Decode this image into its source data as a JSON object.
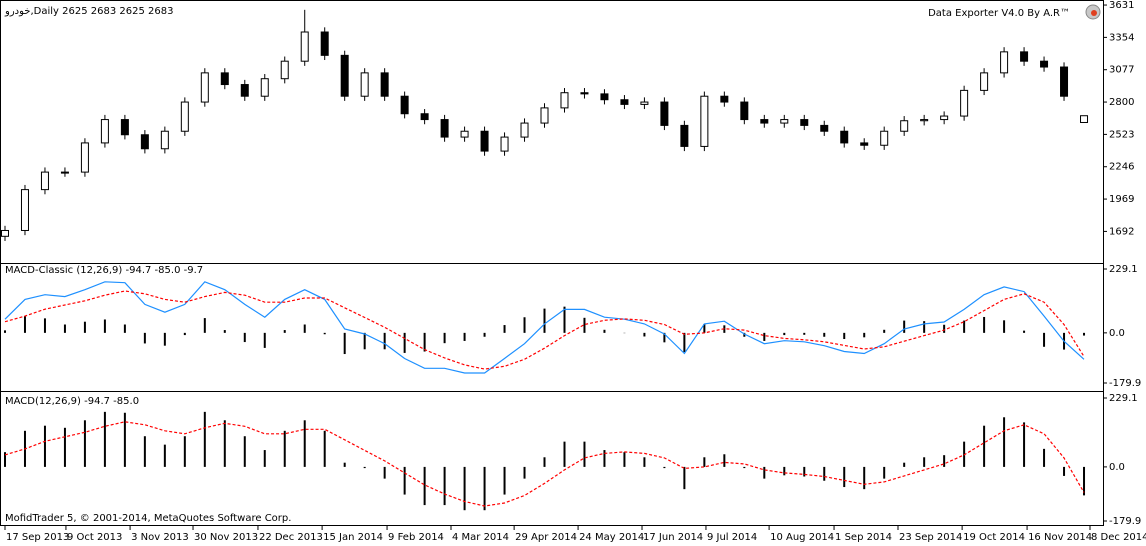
{
  "footer": "MofidTrader 5, © 2001-2014, MetaQuotes Software Corp.",
  "chart_data": [
    {
      "type": "candlestick",
      "title": "خودرو,Daily  2625 2683 2625 2683",
      "annotation": "Data Exporter V4.0 By A.R™",
      "x": [
        0,
        1,
        2,
        3,
        4,
        5,
        6,
        7,
        8,
        9,
        10,
        11,
        12,
        13,
        14,
        15,
        16,
        17,
        18,
        19,
        20,
        21,
        22,
        23,
        24,
        25,
        26,
        27,
        28,
        29,
        30,
        31,
        32,
        33,
        34,
        35,
        36,
        37,
        38,
        39,
        40,
        41,
        42,
        43,
        44,
        45,
        46,
        47,
        48,
        49,
        50,
        51,
        52,
        53,
        54
      ],
      "open": [
        1650,
        1700,
        2050,
        2200,
        2200,
        2450,
        2650,
        2520,
        2400,
        2550,
        2800,
        3050,
        2950,
        2850,
        3000,
        3150,
        3400,
        3200,
        2850,
        3050,
        2850,
        2700,
        2650,
        2500,
        2550,
        2380,
        2500,
        2620,
        2750,
        2880,
        2870,
        2820,
        2780,
        2800,
        2600,
        2420,
        2850,
        2800,
        2650,
        2620,
        2650,
        2600,
        2550,
        2450,
        2430,
        2550,
        2640,
        2650,
        2680,
        2900,
        3050,
        3230,
        3150,
        3100,
        2625
      ],
      "high": [
        1740,
        2090,
        2240,
        2240,
        2490,
        2690,
        2690,
        2560,
        2590,
        2840,
        3090,
        3090,
        2990,
        3040,
        3190,
        3590,
        3440,
        3240,
        3090,
        3090,
        2890,
        2740,
        2690,
        2590,
        2590,
        2540,
        2660,
        2790,
        2920,
        2920,
        2910,
        2860,
        2840,
        2840,
        2640,
        2890,
        2890,
        2840,
        2690,
        2690,
        2690,
        2640,
        2590,
        2490,
        2590,
        2680,
        2690,
        2720,
        2940,
        3090,
        3270,
        3270,
        3190,
        3140,
        2683
      ],
      "low": [
        1610,
        1660,
        2010,
        2160,
        2160,
        2410,
        2480,
        2360,
        2360,
        2510,
        2760,
        2910,
        2810,
        2810,
        2960,
        3110,
        3160,
        2810,
        2810,
        2810,
        2660,
        2610,
        2460,
        2460,
        2340,
        2340,
        2460,
        2580,
        2710,
        2830,
        2780,
        2740,
        2740,
        2560,
        2380,
        2380,
        2760,
        2610,
        2580,
        2580,
        2560,
        2510,
        2410,
        2390,
        2390,
        2510,
        2600,
        2610,
        2640,
        2860,
        3010,
        3110,
        3060,
        2810,
        2625
      ],
      "close": [
        1700,
        2050,
        2200,
        2200,
        2450,
        2650,
        2520,
        2400,
        2550,
        2800,
        3050,
        2950,
        2850,
        3000,
        3150,
        3400,
        3200,
        2850,
        3050,
        2850,
        2700,
        2650,
        2500,
        2550,
        2380,
        2500,
        2620,
        2750,
        2880,
        2870,
        2820,
        2780,
        2800,
        2600,
        2420,
        2850,
        2800,
        2650,
        2620,
        2650,
        2600,
        2550,
        2450,
        2430,
        2550,
        2640,
        2650,
        2680,
        2900,
        3050,
        3230,
        3150,
        3100,
        2850,
        2683
      ],
      "up_color": "#ffffff",
      "down_color": "#000000",
      "xlim": [
        -0.25,
        55
      ],
      "ylim": [
        1430,
        3657
      ],
      "yticks": [
        1692,
        1969,
        2246,
        2523,
        2800,
        3077,
        3354,
        3631
      ]
    },
    {
      "type": "macd",
      "title": "MACD-Classic (12,26,9) -94.7 -85.0 -9.7",
      "x": [
        0,
        1,
        2,
        3,
        4,
        5,
        6,
        7,
        8,
        9,
        10,
        11,
        12,
        13,
        14,
        15,
        16,
        17,
        18,
        19,
        20,
        21,
        22,
        23,
        24,
        25,
        26,
        27,
        28,
        29,
        30,
        31,
        32,
        33,
        34,
        35,
        36,
        37,
        38,
        39,
        40,
        41,
        42,
        43,
        44,
        45,
        46,
        47,
        48,
        49,
        50,
        51,
        52,
        53,
        54
      ],
      "histogram": {
        "color": "#000000",
        "values": [
          9,
          60,
          52,
          30,
          40,
          48,
          30,
          -38,
          -46,
          -8,
          53,
          10,
          -33,
          -54,
          10,
          30,
          -5,
          -76,
          -59,
          -59,
          -72,
          -67,
          -37,
          -29,
          -14,
          28,
          56,
          87,
          94,
          54,
          11,
          -1,
          -13,
          -34,
          -69,
          32,
          27,
          -14,
          -29,
          -8,
          -7,
          -14,
          -22,
          -16,
          11,
          44,
          42,
          29,
          44,
          57,
          45,
          8,
          -50,
          -60,
          -9.7
        ]
      },
      "series": [
        {
          "color": "#1e90ff",
          "dash": false,
          "values": [
            49,
            120,
            137,
            130,
            155,
            183,
            180,
            102,
            74,
            102,
            183,
            155,
            102,
            56,
            120,
            155,
            120,
            14,
            -4,
            -39,
            -92,
            -127,
            -127,
            -144,
            -144,
            -92,
            -39,
            32,
            84,
            84,
            56,
            49,
            32,
            -4,
            -74,
            32,
            42,
            -4,
            -39,
            -28,
            -32,
            -46,
            -67,
            -74,
            -39,
            14,
            32,
            39,
            84,
            137,
            165,
            148,
            60,
            -30,
            -94.7
          ]
        },
        {
          "color": "#ff0000",
          "dash": true,
          "values": [
            40,
            60,
            85,
            100,
            115,
            135,
            150,
            140,
            120,
            110,
            130,
            145,
            135,
            110,
            110,
            125,
            125,
            90,
            55,
            20,
            -20,
            -60,
            -90,
            -115,
            -130,
            -120,
            -95,
            -55,
            -10,
            30,
            45,
            50,
            45,
            30,
            -5,
            0,
            15,
            10,
            -10,
            -20,
            -25,
            -32,
            -45,
            -58,
            -50,
            -30,
            -10,
            10,
            40,
            80,
            120,
            140,
            110,
            30,
            -85.0
          ]
        }
      ],
      "xlim": [
        -0.25,
        55
      ],
      "ylim": [
        -179.9,
        229.1
      ],
      "yticks": [
        229.1,
        {
          "value": 0,
          "label": "0.0"
        },
        -179.9
      ]
    },
    {
      "type": "macd",
      "title": "MACD(12,26,9) -94.7 -85.0",
      "x": [
        0,
        1,
        2,
        3,
        4,
        5,
        6,
        7,
        8,
        9,
        10,
        11,
        12,
        13,
        14,
        15,
        16,
        17,
        18,
        19,
        20,
        21,
        22,
        23,
        24,
        25,
        26,
        27,
        28,
        29,
        30,
        31,
        32,
        33,
        34,
        35,
        36,
        37,
        38,
        39,
        40,
        41,
        42,
        43,
        44,
        45,
        46,
        47,
        48,
        49,
        50,
        51,
        52,
        53,
        54
      ],
      "histogram": {
        "color": "#000000",
        "values": [
          49,
          120,
          137,
          130,
          155,
          183,
          180,
          102,
          74,
          102,
          183,
          155,
          102,
          56,
          120,
          155,
          120,
          14,
          -4,
          -39,
          -92,
          -127,
          -127,
          -144,
          -144,
          -92,
          -39,
          32,
          84,
          84,
          56,
          49,
          32,
          -4,
          -74,
          32,
          42,
          -4,
          -39,
          -28,
          -32,
          -46,
          -67,
          -74,
          -39,
          14,
          32,
          39,
          84,
          137,
          165,
          148,
          60,
          -30,
          -94.7
        ]
      },
      "series": [
        {
          "color": "#ff0000",
          "dash": true,
          "values": [
            40,
            60,
            85,
            100,
            115,
            135,
            150,
            140,
            120,
            110,
            130,
            145,
            135,
            110,
            110,
            125,
            125,
            90,
            55,
            20,
            -20,
            -60,
            -90,
            -115,
            -130,
            -120,
            -95,
            -55,
            -10,
            30,
            45,
            50,
            45,
            30,
            -5,
            0,
            15,
            10,
            -10,
            -20,
            -25,
            -32,
            -45,
            -58,
            -50,
            -30,
            -10,
            10,
            40,
            80,
            120,
            140,
            110,
            30,
            -85.0
          ]
        }
      ],
      "xlim": [
        -0.25,
        55
      ],
      "ylim": [
        -179.9,
        229.1
      ],
      "yticks": [
        229.1,
        {
          "value": 0,
          "label": "0.0"
        },
        -179.9
      ],
      "xticks": [
        {
          "value": 0,
          "label": "17 Sep 2013"
        },
        {
          "value": 3.05,
          "label": "9 Oct 2013"
        },
        {
          "value": 6.26,
          "label": "3 Nov 2013"
        },
        {
          "value": 9.41,
          "label": "30 Nov 2013"
        },
        {
          "value": 12.66,
          "label": "22 Dec 2013"
        },
        {
          "value": 15.87,
          "label": "15 Jan 2014"
        },
        {
          "value": 19.12,
          "label": "9 Feb 2014"
        },
        {
          "value": 22.32,
          "label": "4 Mar 2014"
        },
        {
          "value": 25.48,
          "label": "29 Apr 2014"
        },
        {
          "value": 28.68,
          "label": "24 May 2014"
        },
        {
          "value": 31.88,
          "label": "17 Jun 2014"
        },
        {
          "value": 35.08,
          "label": "9 Jul 2014"
        },
        {
          "value": 38.24,
          "label": "10 Aug 2014"
        },
        {
          "value": 41.49,
          "label": "1 Sep 2014"
        },
        {
          "value": 44.69,
          "label": "23 Sep 2014"
        },
        {
          "value": 47.9,
          "label": "19 Oct 2014"
        },
        {
          "value": 51.15,
          "label": "16 Nov 2014"
        },
        {
          "value": 54.3,
          "label": "8 Dec 2014"
        }
      ]
    }
  ]
}
